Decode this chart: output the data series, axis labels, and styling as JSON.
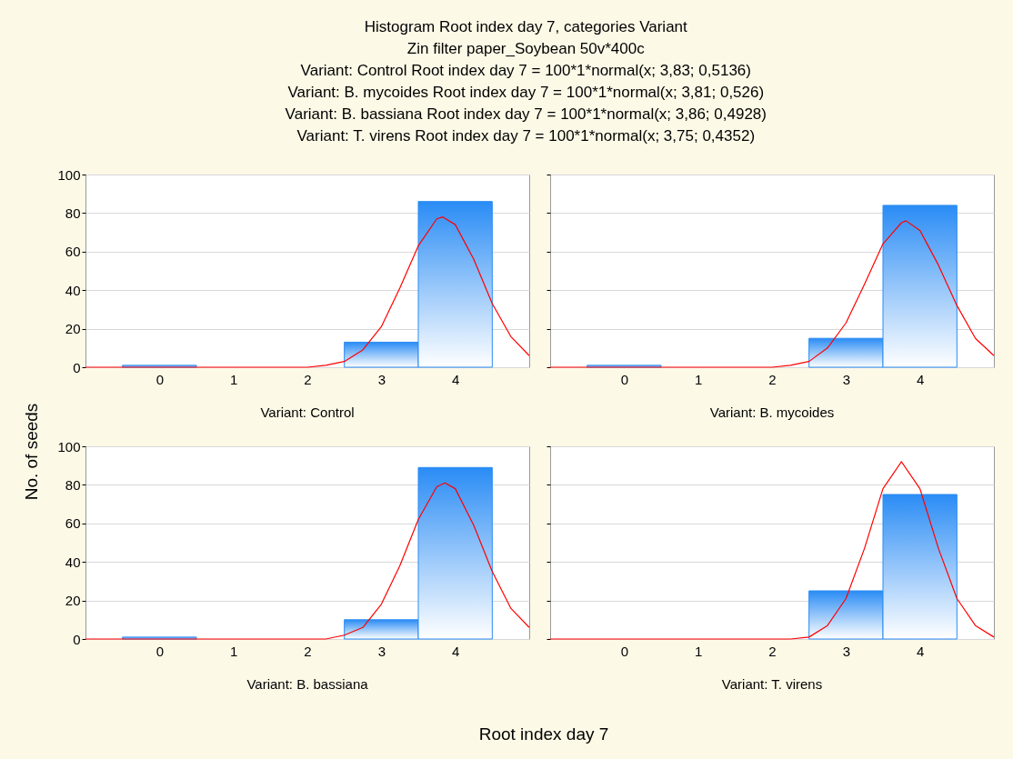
{
  "chart_data": [
    {
      "type": "histogram",
      "title": "Histogram Root index day 7, categories Variant",
      "subtitle": "Zin filter paper_Soybean 50v*400c",
      "xlabel": "Root index day 7",
      "ylabel": "No. of seeds",
      "annotations": [
        "Variant: Control Root index day 7 = 100*1*normal(x; 3,83; 0,5136)",
        "Variant: Control"
      ],
      "bins": [
        -0.5,
        0.5,
        1.5,
        2.5,
        3.5,
        4.5
      ],
      "series": [
        {
          "color": "#2a8cf5",
          "values": [
            1,
            0,
            0,
            13,
            86
          ]
        },
        {
          "type": "line",
          "color": "#ff0000",
          "x": [
            -1,
            1.5,
            2,
            2.25,
            2.5,
            2.75,
            3,
            3.25,
            3.5,
            3.75,
            3.83,
            4,
            4.25,
            4.5,
            4.75,
            5
          ],
          "values": [
            0,
            0,
            0,
            1,
            3,
            9,
            21,
            41,
            63,
            77,
            78,
            74,
            56,
            33,
            16,
            6
          ]
        }
      ],
      "xlim": [
        -1,
        5
      ],
      "xticks": [
        0,
        1,
        2,
        3,
        4
      ],
      "ylim": [
        0,
        100
      ],
      "yticks": [
        0,
        20,
        40,
        60,
        80,
        100
      ],
      "grid": "y"
    },
    {
      "type": "histogram",
      "annotations": [
        "Variant: B. mycoides Root index day 7 = 100*1*normal(x; 3,81; 0,526)",
        "Variant: B. mycoides"
      ],
      "bins": [
        -0.5,
        0.5,
        1.5,
        2.5,
        3.5,
        4.5
      ],
      "series": [
        {
          "color": "#2a8cf5",
          "values": [
            1,
            0,
            0,
            15,
            84
          ]
        },
        {
          "type": "line",
          "color": "#ff0000",
          "x": [
            -1,
            1.5,
            2,
            2.25,
            2.5,
            2.75,
            3,
            3.25,
            3.5,
            3.75,
            3.81,
            4,
            4.25,
            4.5,
            4.75,
            5
          ],
          "values": [
            0,
            0,
            0,
            1,
            3,
            10,
            23,
            43,
            64,
            75,
            76,
            71,
            53,
            32,
            15,
            6
          ]
        }
      ],
      "xlim": [
        -1,
        5
      ],
      "xticks": [
        0,
        1,
        2,
        3,
        4
      ],
      "ylim": [
        0,
        100
      ],
      "yticks": [
        0,
        20,
        40,
        60,
        80,
        100
      ],
      "grid": "y",
      "tick_labels": "x"
    },
    {
      "type": "histogram",
      "annotations": [
        "Variant: B. bassiana Root index day 7 = 100*1*normal(x; 3,86; 0,4928)",
        "Variant: B. bassiana"
      ],
      "bins": [
        -0.5,
        0.5,
        1.5,
        2.5,
        3.5,
        4.5
      ],
      "series": [
        {
          "color": "#2a8cf5",
          "values": [
            1,
            0,
            0,
            10,
            89
          ]
        },
        {
          "type": "line",
          "color": "#ff0000",
          "x": [
            -1,
            1.5,
            2,
            2.25,
            2.5,
            2.75,
            3,
            3.25,
            3.5,
            3.75,
            3.86,
            4,
            4.25,
            4.5,
            4.75,
            5
          ],
          "values": [
            0,
            0,
            0,
            0,
            2,
            6,
            18,
            38,
            62,
            79,
            81,
            78,
            59,
            35,
            16,
            6
          ]
        }
      ],
      "xlim": [
        -1,
        5
      ],
      "xticks": [
        0,
        1,
        2,
        3,
        4
      ],
      "ylim": [
        0,
        100
      ],
      "yticks": [
        0,
        20,
        40,
        60,
        80,
        100
      ],
      "grid": "y"
    },
    {
      "type": "histogram",
      "annotations": [
        "Variant: T. virens Root index day 7 = 100*1*normal(x; 3,75; 0,4352)",
        "Variant: T. virens"
      ],
      "bins": [
        -0.5,
        0.5,
        1.5,
        2.5,
        3.5,
        4.5
      ],
      "series": [
        {
          "color": "#2a8cf5",
          "values": [
            0,
            0,
            0,
            25,
            75
          ]
        },
        {
          "type": "line",
          "color": "#ff0000",
          "x": [
            -1,
            1.5,
            2,
            2.25,
            2.5,
            2.75,
            3,
            3.25,
            3.5,
            3.75,
            4,
            4.25,
            4.5,
            4.75,
            5
          ],
          "values": [
            0,
            0,
            0,
            0,
            1,
            7,
            21,
            47,
            78,
            92,
            78,
            47,
            21,
            7,
            1
          ]
        }
      ],
      "xlim": [
        -1,
        5
      ],
      "xticks": [
        0,
        1,
        2,
        3,
        4
      ],
      "ylim": [
        0,
        100
      ],
      "yticks": [
        0,
        20,
        40,
        60,
        80,
        100
      ],
      "grid": "y",
      "tick_labels": "x"
    }
  ]
}
